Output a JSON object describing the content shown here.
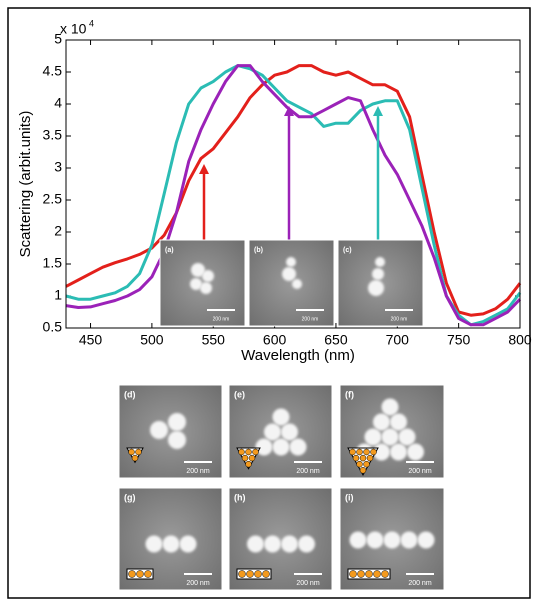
{
  "chart_data": {
    "type": "line",
    "x_label": "Wavelength (nm)",
    "y_label": "Scattering (arbit.units)",
    "y_scale_note": "x 10",
    "y_scale_exponent": "4",
    "x": [
      430,
      440,
      450,
      460,
      470,
      480,
      490,
      500,
      510,
      520,
      530,
      540,
      550,
      560,
      570,
      580,
      590,
      600,
      610,
      620,
      630,
      640,
      650,
      660,
      670,
      680,
      690,
      700,
      710,
      720,
      730,
      740,
      750,
      760,
      770,
      780,
      790,
      800
    ],
    "series": [
      {
        "color": "#e3201b",
        "values": [
          1.15,
          1.25,
          1.35,
          1.45,
          1.52,
          1.58,
          1.65,
          1.75,
          1.95,
          2.3,
          2.8,
          3.15,
          3.3,
          3.55,
          3.8,
          4.1,
          4.3,
          4.45,
          4.5,
          4.6,
          4.6,
          4.5,
          4.45,
          4.5,
          4.4,
          4.3,
          4.3,
          4.2,
          3.8,
          2.9,
          2.0,
          1.2,
          0.75,
          0.7,
          0.72,
          0.8,
          0.95,
          1.2
        ]
      },
      {
        "color": "#2bbcb4",
        "values": [
          1.0,
          0.95,
          0.95,
          1.0,
          1.05,
          1.15,
          1.35,
          1.8,
          2.6,
          3.4,
          4.0,
          4.25,
          4.35,
          4.5,
          4.6,
          4.55,
          4.45,
          4.25,
          4.05,
          3.95,
          3.85,
          3.65,
          3.7,
          3.7,
          3.9,
          4.0,
          4.05,
          4.05,
          3.6,
          2.7,
          1.8,
          1.0,
          0.7,
          0.55,
          0.6,
          0.7,
          0.8,
          1.05
        ]
      },
      {
        "color": "#9b22b8",
        "values": [
          0.85,
          0.82,
          0.83,
          0.88,
          0.93,
          1.0,
          1.1,
          1.3,
          1.7,
          2.3,
          3.1,
          3.6,
          4.0,
          4.35,
          4.6,
          4.6,
          4.35,
          4.15,
          3.95,
          3.8,
          3.8,
          3.9,
          4.0,
          4.1,
          4.05,
          3.6,
          3.2,
          2.9,
          2.5,
          2.1,
          1.6,
          1.0,
          0.65,
          0.55,
          0.55,
          0.65,
          0.75,
          0.95
        ]
      }
    ],
    "xlim": [
      430,
      800
    ],
    "xticks": [
      450,
      500,
      550,
      600,
      650,
      700,
      750,
      800
    ],
    "ylim": [
      0.5,
      5
    ],
    "yticks": [
      0.5,
      1,
      1.5,
      2,
      2.5,
      3,
      3.5,
      4,
      4.5,
      5
    ],
    "grid": false
  },
  "insets": [
    {
      "label": "(a)",
      "scale": "200 nm"
    },
    {
      "label": "(b)",
      "scale": "200 nm"
    },
    {
      "label": "(c)",
      "scale": "200 nm"
    }
  ],
  "panels": [
    {
      "label": "(d)",
      "scale": "200 nm"
    },
    {
      "label": "(e)",
      "scale": "200 nm"
    },
    {
      "label": "(f)",
      "scale": "200 nm"
    },
    {
      "label": "(g)",
      "scale": "200 nm"
    },
    {
      "label": "(h)",
      "scale": "200 nm"
    },
    {
      "label": "(i)",
      "scale": "200 nm"
    }
  ]
}
